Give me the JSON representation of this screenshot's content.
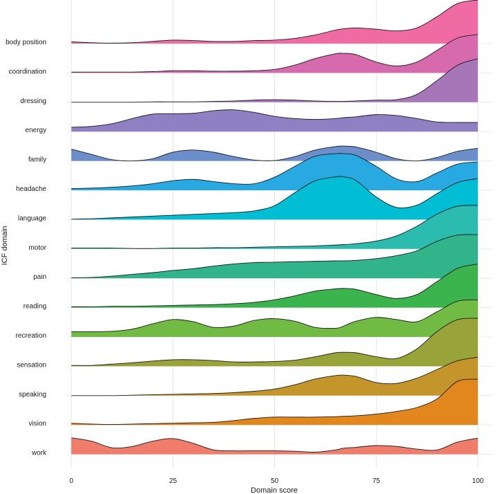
{
  "chart_data": {
    "type": "ridgeline",
    "title": "",
    "xlabel": "Domain score",
    "ylabel": "ICF domain",
    "xlim": [
      0,
      100
    ],
    "x_ticks": [
      "0",
      "25",
      "50",
      "75",
      "100"
    ],
    "x": [
      0,
      5,
      10,
      15,
      20,
      25,
      30,
      35,
      40,
      45,
      50,
      55,
      60,
      65,
      67,
      70,
      75,
      80,
      85,
      90,
      95,
      100
    ],
    "series": [
      {
        "name": "body position",
        "color": "#F06AA4",
        "values": [
          0.04,
          0.02,
          0.01,
          0.02,
          0.05,
          0.08,
          0.07,
          0.05,
          0.05,
          0.07,
          0.08,
          0.12,
          0.2,
          0.31,
          0.34,
          0.36,
          0.33,
          0.29,
          0.36,
          0.62,
          0.92,
          1.0
        ]
      },
      {
        "name": "coordination",
        "color": "#D769AD",
        "values": [
          0.02,
          0.02,
          0.02,
          0.02,
          0.03,
          0.05,
          0.05,
          0.04,
          0.04,
          0.05,
          0.08,
          0.18,
          0.33,
          0.44,
          0.45,
          0.42,
          0.25,
          0.16,
          0.25,
          0.52,
          0.8,
          0.88
        ]
      },
      {
        "name": "dressing",
        "color": "#A776B8",
        "values": [
          0.0,
          0.0,
          0.0,
          0.0,
          0.01,
          0.01,
          0.01,
          0.02,
          0.03,
          0.05,
          0.06,
          0.05,
          0.03,
          0.02,
          0.02,
          0.03,
          0.05,
          0.06,
          0.18,
          0.5,
          0.85,
          1.0
        ]
      },
      {
        "name": "energy",
        "color": "#8F80C4",
        "values": [
          0.1,
          0.12,
          0.18,
          0.3,
          0.4,
          0.41,
          0.42,
          0.48,
          0.5,
          0.44,
          0.35,
          0.3,
          0.28,
          0.3,
          0.32,
          0.34,
          0.39,
          0.37,
          0.3,
          0.22,
          0.21,
          0.21
        ]
      },
      {
        "name": "family",
        "color": "#6C8FCB",
        "values": [
          0.27,
          0.15,
          0.03,
          0.0,
          0.05,
          0.2,
          0.25,
          0.2,
          0.1,
          0.02,
          0.01,
          0.1,
          0.25,
          0.33,
          0.34,
          0.32,
          0.2,
          0.05,
          0.0,
          0.08,
          0.22,
          0.29
        ]
      },
      {
        "name": "headache",
        "color": "#28A9E2",
        "values": [
          0.04,
          0.05,
          0.07,
          0.1,
          0.15,
          0.22,
          0.25,
          0.2,
          0.15,
          0.15,
          0.3,
          0.55,
          0.78,
          0.84,
          0.84,
          0.8,
          0.55,
          0.26,
          0.2,
          0.4,
          0.6,
          0.65
        ]
      },
      {
        "name": "language",
        "color": "#01BED4",
        "values": [
          0.01,
          0.02,
          0.04,
          0.06,
          0.08,
          0.1,
          0.12,
          0.14,
          0.16,
          0.2,
          0.32,
          0.62,
          0.89,
          0.98,
          0.98,
          0.9,
          0.52,
          0.28,
          0.33,
          0.6,
          0.85,
          0.94
        ]
      },
      {
        "name": "motor",
        "color": "#2BBCAF",
        "values": [
          0.02,
          0.02,
          0.02,
          0.01,
          0.01,
          0.02,
          0.02,
          0.03,
          0.03,
          0.04,
          0.05,
          0.06,
          0.07,
          0.09,
          0.1,
          0.12,
          0.18,
          0.3,
          0.52,
          0.8,
          0.98,
          1.0
        ]
      },
      {
        "name": "pain",
        "color": "#31B489",
        "values": [
          0.01,
          0.02,
          0.05,
          0.09,
          0.13,
          0.18,
          0.22,
          0.28,
          0.33,
          0.36,
          0.37,
          0.38,
          0.39,
          0.4,
          0.4,
          0.41,
          0.45,
          0.52,
          0.63,
          0.85,
          0.99,
          1.0
        ]
      },
      {
        "name": "reading",
        "color": "#3BB44E",
        "values": [
          0.02,
          0.02,
          0.03,
          0.03,
          0.04,
          0.05,
          0.06,
          0.07,
          0.09,
          0.12,
          0.18,
          0.27,
          0.38,
          0.43,
          0.44,
          0.42,
          0.3,
          0.21,
          0.3,
          0.6,
          0.9,
          1.0
        ]
      },
      {
        "name": "recreation",
        "color": "#71BA44",
        "values": [
          0.12,
          0.12,
          0.13,
          0.18,
          0.3,
          0.4,
          0.35,
          0.22,
          0.25,
          0.38,
          0.42,
          0.36,
          0.22,
          0.2,
          0.25,
          0.36,
          0.45,
          0.4,
          0.35,
          0.58,
          0.82,
          0.85
        ]
      },
      {
        "name": "sensation",
        "color": "#98A43A",
        "values": [
          0.02,
          0.02,
          0.05,
          0.08,
          0.12,
          0.15,
          0.15,
          0.13,
          0.1,
          0.1,
          0.11,
          0.14,
          0.22,
          0.31,
          0.32,
          0.31,
          0.22,
          0.18,
          0.4,
          0.8,
          1.07,
          1.1
        ]
      },
      {
        "name": "speaking",
        "color": "#C4952A",
        "values": [
          0.0,
          0.0,
          0.0,
          0.01,
          0.02,
          0.03,
          0.04,
          0.05,
          0.07,
          0.1,
          0.15,
          0.25,
          0.38,
          0.46,
          0.47,
          0.44,
          0.3,
          0.28,
          0.4,
          0.6,
          0.8,
          0.88
        ]
      },
      {
        "name": "vision",
        "color": "#E2871E",
        "values": [
          0.04,
          0.02,
          0.01,
          0.02,
          0.03,
          0.04,
          0.05,
          0.06,
          0.1,
          0.15,
          0.18,
          0.18,
          0.18,
          0.19,
          0.2,
          0.21,
          0.25,
          0.31,
          0.4,
          0.6,
          1.0,
          1.05
        ]
      },
      {
        "name": "work",
        "color": "#F07D6B",
        "values": [
          0.38,
          0.3,
          0.15,
          0.18,
          0.3,
          0.36,
          0.25,
          0.1,
          0.08,
          0.08,
          0.08,
          0.07,
          0.05,
          0.1,
          0.14,
          0.16,
          0.2,
          0.18,
          0.12,
          0.1,
          0.28,
          0.37
        ]
      }
    ]
  }
}
